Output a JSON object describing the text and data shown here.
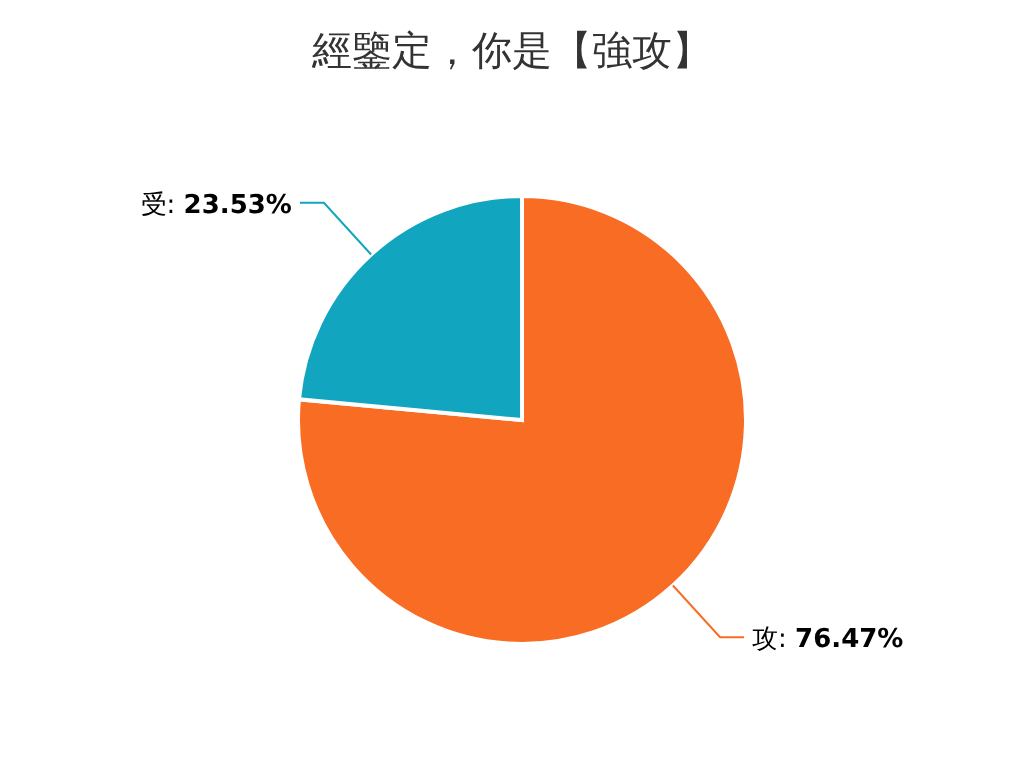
{
  "chart_data": {
    "type": "pie",
    "title": "經鑒定，你是【強攻】",
    "categories": [
      "攻",
      "受"
    ],
    "values": [
      76.47,
      23.53
    ],
    "colors": [
      "#f96c24",
      "#12a5bf"
    ],
    "value_labels": [
      ": 76.47%",
      ": 23.53%"
    ]
  }
}
